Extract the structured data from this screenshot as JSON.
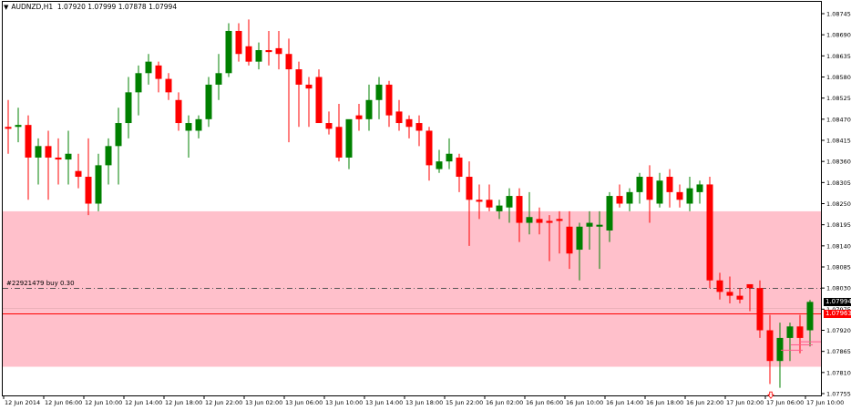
{
  "header": {
    "symbol_timeframe": "AUDNZD,H1",
    "ohlc": "1.07920 1.07999 1.07878 1.07994"
  },
  "order": {
    "label": "#22921479 buy 0.30",
    "price": 1.0803
  },
  "price_tags": {
    "last": "1.07994",
    "bid": "1.07963",
    "last_color": "#000000",
    "bid_color": "#ff0000"
  },
  "colors": {
    "bull": "#008000",
    "bear": "#ff0000",
    "zone": "#ffc0cb",
    "background": "#ffffff",
    "axis_text": "#000000"
  },
  "chart_data": {
    "type": "candlestick",
    "y_ticks": [
      "1.08745",
      "1.08690",
      "1.08635",
      "1.08580",
      "1.08525",
      "1.08470",
      "1.08415",
      "1.08360",
      "1.08305",
      "1.08250",
      "1.08195",
      "1.08140",
      "1.08085",
      "1.08030",
      "1.07975",
      "1.07920",
      "1.07865",
      "1.07810",
      "1.07755"
    ],
    "ylim": [
      1.07745,
      1.0876
    ],
    "x_ticks": [
      "12 Jun 2014",
      "12 Jun 06:00",
      "12 Jun 10:00",
      "12 Jun 14:00",
      "12 Jun 18:00",
      "12 Jun 22:00",
      "13 Jun 02:00",
      "13 Jun 06:00",
      "13 Jun 10:00",
      "13 Jun 14:00",
      "13 Jun 18:00",
      "15 Jun 22:00",
      "16 Jun 02:00",
      "16 Jun 06:00",
      "16 Jun 10:00",
      "16 Jun 14:00",
      "16 Jun 18:00",
      "16 Jun 22:00",
      "17 Jun 02:00",
      "17 Jun 06:00",
      "17 Jun 10:00"
    ],
    "zone": {
      "top": 1.0823,
      "bottom": 1.07825
    },
    "horizontal_lines": [
      {
        "name": "order",
        "price": 1.0803,
        "style": "dashdot"
      },
      {
        "name": "bid",
        "price": 1.07963,
        "style": "solid"
      }
    ],
    "candles": [
      {
        "o": 1.0845,
        "h": 1.0852,
        "l": 1.0838,
        "c": 1.08445
      },
      {
        "o": 1.0845,
        "h": 1.085,
        "l": 1.0841,
        "c": 1.08455
      },
      {
        "o": 1.08455,
        "h": 1.0848,
        "l": 1.0826,
        "c": 1.0837
      },
      {
        "o": 1.0837,
        "h": 1.0842,
        "l": 1.083,
        "c": 1.084
      },
      {
        "o": 1.084,
        "h": 1.0844,
        "l": 1.0826,
        "c": 1.0837
      },
      {
        "o": 1.0837,
        "h": 1.0842,
        "l": 1.083,
        "c": 1.08365
      },
      {
        "o": 1.08365,
        "h": 1.0844,
        "l": 1.083,
        "c": 1.0838
      },
      {
        "o": 1.08335,
        "h": 1.0838,
        "l": 1.0829,
        "c": 1.0832
      },
      {
        "o": 1.0832,
        "h": 1.0842,
        "l": 1.0822,
        "c": 1.0825
      },
      {
        "o": 1.0825,
        "h": 1.0838,
        "l": 1.0823,
        "c": 1.0835
      },
      {
        "o": 1.0835,
        "h": 1.0842,
        "l": 1.083,
        "c": 1.084
      },
      {
        "o": 1.084,
        "h": 1.085,
        "l": 1.083,
        "c": 1.0846
      },
      {
        "o": 1.0846,
        "h": 1.0858,
        "l": 1.0842,
        "c": 1.0854
      },
      {
        "o": 1.0854,
        "h": 1.0861,
        "l": 1.0848,
        "c": 1.0859
      },
      {
        "o": 1.0859,
        "h": 1.0864,
        "l": 1.0856,
        "c": 1.0862
      },
      {
        "o": 1.0861,
        "h": 1.0862,
        "l": 1.0854,
        "c": 1.08575
      },
      {
        "o": 1.08575,
        "h": 1.0859,
        "l": 1.0852,
        "c": 1.0854
      },
      {
        "o": 1.0852,
        "h": 1.0854,
        "l": 1.0844,
        "c": 1.0846
      },
      {
        "o": 1.0844,
        "h": 1.0848,
        "l": 1.0837,
        "c": 1.0846
      },
      {
        "o": 1.0844,
        "h": 1.0848,
        "l": 1.0842,
        "c": 1.0847
      },
      {
        "o": 1.0847,
        "h": 1.0858,
        "l": 1.0845,
        "c": 1.0856
      },
      {
        "o": 1.0856,
        "h": 1.0864,
        "l": 1.0852,
        "c": 1.0859
      },
      {
        "o": 1.0859,
        "h": 1.0872,
        "l": 1.0858,
        "c": 1.087
      },
      {
        "o": 1.087,
        "h": 1.0872,
        "l": 1.0862,
        "c": 1.0864
      },
      {
        "o": 1.0866,
        "h": 1.0873,
        "l": 1.0861,
        "c": 1.0862
      },
      {
        "o": 1.0862,
        "h": 1.0867,
        "l": 1.086,
        "c": 1.0865
      },
      {
        "o": 1.0865,
        "h": 1.087,
        "l": 1.0861,
        "c": 1.08645
      },
      {
        "o": 1.08655,
        "h": 1.087,
        "l": 1.086,
        "c": 1.0864
      },
      {
        "o": 1.0864,
        "h": 1.0868,
        "l": 1.0841,
        "c": 1.086
      },
      {
        "o": 1.086,
        "h": 1.0862,
        "l": 1.0845,
        "c": 1.0856
      },
      {
        "o": 1.0856,
        "h": 1.0858,
        "l": 1.0845,
        "c": 1.0855
      },
      {
        "o": 1.0858,
        "h": 1.086,
        "l": 1.0846,
        "c": 1.0846
      },
      {
        "o": 1.0846,
        "h": 1.0849,
        "l": 1.0843,
        "c": 1.08445
      },
      {
        "o": 1.0845,
        "h": 1.0851,
        "l": 1.0836,
        "c": 1.0837
      },
      {
        "o": 1.0837,
        "h": 1.0846,
        "l": 1.0834,
        "c": 1.0847
      },
      {
        "o": 1.0848,
        "h": 1.0851,
        "l": 1.0844,
        "c": 1.0847
      },
      {
        "o": 1.0847,
        "h": 1.0856,
        "l": 1.0844,
        "c": 1.0852
      },
      {
        "o": 1.0852,
        "h": 1.0858,
        "l": 1.0847,
        "c": 1.0856
      },
      {
        "o": 1.0856,
        "h": 1.0857,
        "l": 1.0845,
        "c": 1.0848
      },
      {
        "o": 1.0849,
        "h": 1.0852,
        "l": 1.0844,
        "c": 1.0846
      },
      {
        "o": 1.0847,
        "h": 1.0848,
        "l": 1.0842,
        "c": 1.0845
      },
      {
        "o": 1.0846,
        "h": 1.0848,
        "l": 1.084,
        "c": 1.0844
      },
      {
        "o": 1.0844,
        "h": 1.0845,
        "l": 1.0831,
        "c": 1.0835
      },
      {
        "o": 1.0834,
        "h": 1.0839,
        "l": 1.0833,
        "c": 1.0836
      },
      {
        "o": 1.0836,
        "h": 1.0842,
        "l": 1.0834,
        "c": 1.0838
      },
      {
        "o": 1.0837,
        "h": 1.0838,
        "l": 1.0828,
        "c": 1.0832
      },
      {
        "o": 1.0832,
        "h": 1.0836,
        "l": 1.0814,
        "c": 1.0826
      },
      {
        "o": 1.0826,
        "h": 1.083,
        "l": 1.0821,
        "c": 1.08255
      },
      {
        "o": 1.0826,
        "h": 1.083,
        "l": 1.0823,
        "c": 1.0824
      },
      {
        "o": 1.0823,
        "h": 1.0826,
        "l": 1.0821,
        "c": 1.08245
      },
      {
        "o": 1.0824,
        "h": 1.0829,
        "l": 1.082,
        "c": 1.0827
      },
      {
        "o": 1.0827,
        "h": 1.0829,
        "l": 1.0815,
        "c": 1.082
      },
      {
        "o": 1.082,
        "h": 1.0828,
        "l": 1.0817,
        "c": 1.08215
      },
      {
        "o": 1.0821,
        "h": 1.0824,
        "l": 1.0817,
        "c": 1.082
      },
      {
        "o": 1.08205,
        "h": 1.0822,
        "l": 1.081,
        "c": 1.082
      },
      {
        "o": 1.0821,
        "h": 1.0823,
        "l": 1.0812,
        "c": 1.08205
      },
      {
        "o": 1.0819,
        "h": 1.0823,
        "l": 1.0808,
        "c": 1.0812
      },
      {
        "o": 1.0813,
        "h": 1.082,
        "l": 1.0805,
        "c": 1.0819
      },
      {
        "o": 1.0819,
        "h": 1.0823,
        "l": 1.0813,
        "c": 1.082
      },
      {
        "o": 1.0819,
        "h": 1.0823,
        "l": 1.0808,
        "c": 1.08195
      },
      {
        "o": 1.0818,
        "h": 1.0828,
        "l": 1.0815,
        "c": 1.0827
      },
      {
        "o": 1.0827,
        "h": 1.083,
        "l": 1.0824,
        "c": 1.0825
      },
      {
        "o": 1.0825,
        "h": 1.0829,
        "l": 1.0823,
        "c": 1.0828
      },
      {
        "o": 1.0828,
        "h": 1.0833,
        "l": 1.0825,
        "c": 1.0832
      },
      {
        "o": 1.0832,
        "h": 1.0835,
        "l": 1.082,
        "c": 1.0826
      },
      {
        "o": 1.0825,
        "h": 1.0833,
        "l": 1.0824,
        "c": 1.0831
      },
      {
        "o": 1.0832,
        "h": 1.0834,
        "l": 1.0824,
        "c": 1.0828
      },
      {
        "o": 1.0828,
        "h": 1.083,
        "l": 1.0824,
        "c": 1.0826
      },
      {
        "o": 1.0825,
        "h": 1.0832,
        "l": 1.0823,
        "c": 1.0829
      },
      {
        "o": 1.0828,
        "h": 1.0831,
        "l": 1.0825,
        "c": 1.083
      },
      {
        "o": 1.083,
        "h": 1.0832,
        "l": 1.0803,
        "c": 1.0805
      },
      {
        "o": 1.0805,
        "h": 1.0807,
        "l": 1.08,
        "c": 1.0802
      },
      {
        "o": 1.0802,
        "h": 1.0806,
        "l": 1.0799,
        "c": 1.0801
      },
      {
        "o": 1.0801,
        "h": 1.0803,
        "l": 1.0799,
        "c": 1.08
      },
      {
        "o": 1.0804,
        "h": 1.0804,
        "l": 1.0797,
        "c": 1.0803
      },
      {
        "o": 1.0803,
        "h": 1.0805,
        "l": 1.079,
        "c": 1.0792
      },
      {
        "o": 1.0792,
        "h": 1.0796,
        "l": 1.0778,
        "c": 1.0784
      },
      {
        "o": 1.0784,
        "h": 1.0794,
        "l": 1.0777,
        "c": 1.079
      },
      {
        "o": 1.079,
        "h": 1.0794,
        "l": 1.0784,
        "c": 1.0793
      },
      {
        "o": 1.0793,
        "h": 1.0796,
        "l": 1.0786,
        "c": 1.079
      },
      {
        "o": 1.0792,
        "h": 1.07999,
        "l": 1.07878,
        "c": 1.07994
      }
    ]
  }
}
